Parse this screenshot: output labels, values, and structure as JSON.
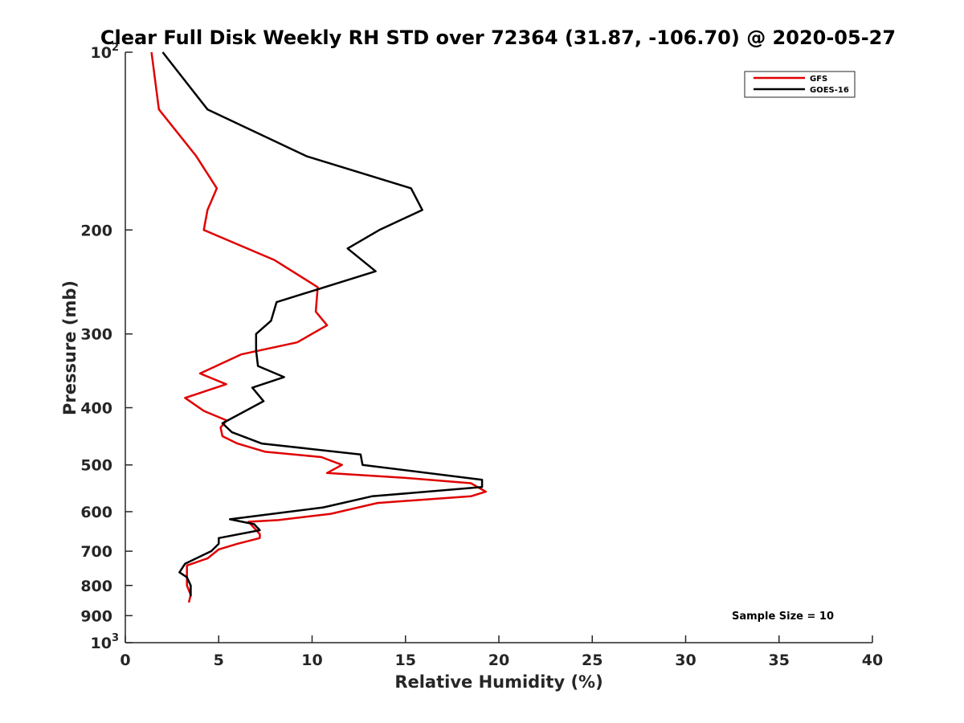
{
  "chart_data": {
    "type": "line",
    "title": "Clear Full Disk Weekly RH STD over 72364 (31.87, -106.70) @ 2020-05-27",
    "xlabel": "Relative Humidity (%)",
    "ylabel": "Pressure (mb)",
    "xlim": [
      0,
      40
    ],
    "ylim": [
      100,
      1000
    ],
    "yscale": "log",
    "y_reversed": true,
    "grid": false,
    "legend_position": "top-right",
    "x_ticks": [
      0,
      5,
      10,
      15,
      20,
      25,
      30,
      35,
      40
    ],
    "x_tick_labels": [
      "0",
      "5",
      "10",
      "15",
      "20",
      "25",
      "30",
      "35",
      "40"
    ],
    "y_ticks": [
      100,
      200,
      300,
      400,
      500,
      600,
      700,
      800,
      900,
      1000
    ],
    "y_tick_labels": [
      {
        "base": "10",
        "exp": "2"
      },
      {
        "base": "200"
      },
      {
        "base": "300"
      },
      {
        "base": "400"
      },
      {
        "base": "500"
      },
      {
        "base": "600"
      },
      {
        "base": "700"
      },
      {
        "base": "800"
      },
      {
        "base": "900"
      },
      {
        "base": "10",
        "exp": "3"
      }
    ],
    "series": [
      {
        "name": "GFS",
        "color": "#e00000",
        "points": [
          [
            1.4,
            100
          ],
          [
            1.8,
            125
          ],
          [
            3.8,
            150
          ],
          [
            4.9,
            170
          ],
          [
            4.4,
            185
          ],
          [
            4.2,
            200
          ],
          [
            8.0,
            225
          ],
          [
            10.3,
            250
          ],
          [
            10.2,
            275
          ],
          [
            10.8,
            290
          ],
          [
            9.2,
            310
          ],
          [
            6.2,
            325
          ],
          [
            4.0,
            350
          ],
          [
            5.4,
            365
          ],
          [
            3.2,
            385
          ],
          [
            4.2,
            405
          ],
          [
            5.4,
            420
          ],
          [
            5.3,
            425
          ],
          [
            5.1,
            432
          ],
          [
            5.2,
            447
          ],
          [
            6.0,
            460
          ],
          [
            7.5,
            475
          ],
          [
            10.5,
            485
          ],
          [
            11.6,
            500
          ],
          [
            10.8,
            516
          ],
          [
            15.0,
            526
          ],
          [
            18.5,
            537
          ],
          [
            19.3,
            555
          ],
          [
            18.5,
            565
          ],
          [
            13.5,
            580
          ],
          [
            11.0,
            605
          ],
          [
            8.2,
            620
          ],
          [
            6.6,
            624
          ],
          [
            7.2,
            655
          ],
          [
            7.2,
            665
          ],
          [
            6.0,
            680
          ],
          [
            5.0,
            695
          ],
          [
            4.4,
            720
          ],
          [
            3.3,
            740
          ],
          [
            3.3,
            770
          ],
          [
            3.3,
            800
          ],
          [
            3.5,
            830
          ],
          [
            3.4,
            855
          ]
        ]
      },
      {
        "name": "GOES-16",
        "color": "#000000",
        "points": [
          [
            2.0,
            100
          ],
          [
            4.4,
            125
          ],
          [
            9.7,
            150
          ],
          [
            15.3,
            170
          ],
          [
            15.9,
            185
          ],
          [
            13.6,
            200
          ],
          [
            11.9,
            215
          ],
          [
            13.4,
            235
          ],
          [
            8.1,
            265
          ],
          [
            7.8,
            285
          ],
          [
            7.0,
            300
          ],
          [
            7.0,
            320
          ],
          [
            7.1,
            340
          ],
          [
            8.5,
            355
          ],
          [
            6.8,
            370
          ],
          [
            7.4,
            390
          ],
          [
            5.2,
            425
          ],
          [
            5.7,
            440
          ],
          [
            7.3,
            460
          ],
          [
            12.6,
            480
          ],
          [
            12.7,
            500
          ],
          [
            19.1,
            530
          ],
          [
            19.1,
            545
          ],
          [
            13.2,
            565
          ],
          [
            10.6,
            590
          ],
          [
            5.6,
            618
          ],
          [
            6.9,
            630
          ],
          [
            7.2,
            645
          ],
          [
            5.0,
            665
          ],
          [
            5.0,
            680
          ],
          [
            4.6,
            700
          ],
          [
            3.2,
            735
          ],
          [
            2.9,
            760
          ],
          [
            3.3,
            775
          ],
          [
            3.5,
            800
          ],
          [
            3.5,
            835
          ]
        ]
      }
    ],
    "annotations": [
      "Sample Size = 10"
    ]
  }
}
